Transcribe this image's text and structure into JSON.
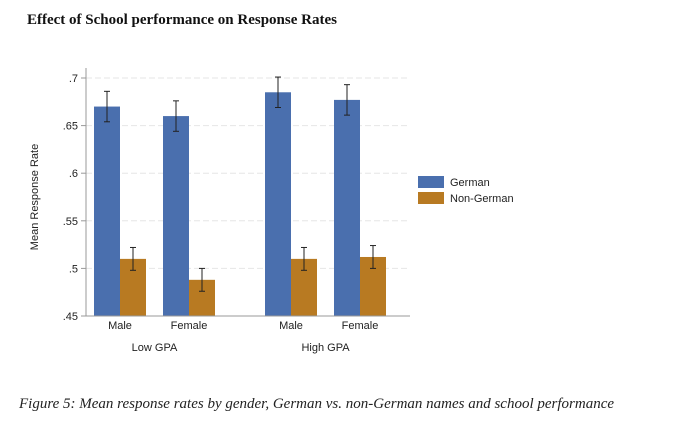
{
  "title": "Effect of School performance on Response Rates",
  "caption": "Figure 5: Mean response rates by gender, German vs. non-German names and school performance",
  "chart_data": {
    "type": "bar",
    "title": "Effect of School performance on Response Rates",
    "ylabel": "Mean Response Rate",
    "xlabel": "",
    "ylim": [
      0.45,
      0.7
    ],
    "yticks": [
      0.45,
      0.5,
      0.55,
      0.6,
      0.65,
      0.7
    ],
    "ytick_labels": [
      ".45",
      ".5",
      ".55",
      ".6",
      ".65",
      ".7"
    ],
    "grid": true,
    "legend_position": "right",
    "groups": [
      {
        "label": "Low GPA",
        "categories": [
          "Male",
          "Female"
        ]
      },
      {
        "label": "High GPA",
        "categories": [
          "Male",
          "Female"
        ]
      }
    ],
    "series": [
      {
        "name": "German",
        "color": "#4a6fae",
        "values": [
          0.67,
          0.66,
          0.685,
          0.677
        ],
        "ci_low": [
          0.654,
          0.644,
          0.669,
          0.661
        ],
        "ci_high": [
          0.686,
          0.676,
          0.701,
          0.693
        ]
      },
      {
        "name": "Non-German",
        "color": "#b87a22",
        "values": [
          0.51,
          0.488,
          0.51,
          0.512
        ],
        "ci_low": [
          0.498,
          0.476,
          0.498,
          0.5
        ],
        "ci_high": [
          0.522,
          0.5,
          0.522,
          0.524
        ]
      }
    ]
  }
}
